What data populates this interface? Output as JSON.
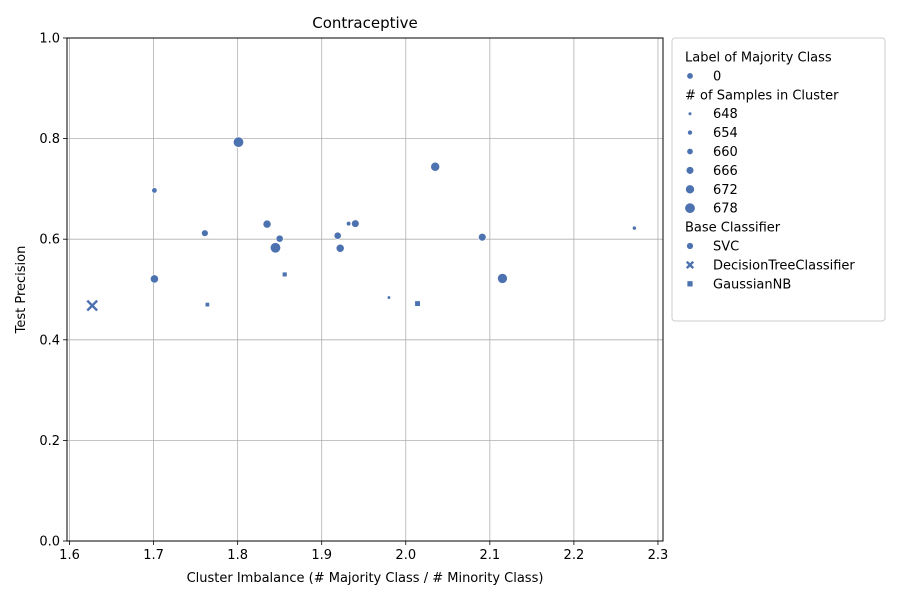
{
  "chart_data": {
    "type": "scatter",
    "title": "Contraceptive",
    "xlabel": "Cluster Imbalance (# Majority Class / # Minority Class)",
    "ylabel": "Test Precision",
    "xlim": [
      1.597,
      2.306
    ],
    "ylim": [
      0.0,
      1.0
    ],
    "xticks": [
      "1.6",
      "1.7",
      "1.8",
      "1.9",
      "2.0",
      "2.1",
      "2.2",
      "2.3"
    ],
    "yticks": [
      "0.0",
      "0.2",
      "0.4",
      "0.6",
      "0.8",
      "1.0"
    ],
    "grid": true,
    "legend_placement": "outside-upper-right",
    "color": "#4c72b0",
    "legend": {
      "hue_title": "Label of Majority Class",
      "hue_items": [
        "0"
      ],
      "size_title": "# of Samples in Cluster",
      "size_items": [
        "648",
        "654",
        "660",
        "666",
        "672",
        "678"
      ],
      "style_title": "Base Classifier",
      "style_items": [
        {
          "label": "SVC",
          "marker": "circle"
        },
        {
          "label": "DecisionTreeClassifier",
          "marker": "x"
        },
        {
          "label": "GaussianNB",
          "marker": "square"
        }
      ]
    },
    "points": [
      {
        "x": 1.801,
        "y": 0.793,
        "samples": 678,
        "classifier": "SVC"
      },
      {
        "x": 1.701,
        "y": 0.697,
        "samples": 656,
        "classifier": "SVC"
      },
      {
        "x": 2.035,
        "y": 0.744,
        "samples": 672,
        "classifier": "SVC"
      },
      {
        "x": 1.761,
        "y": 0.612,
        "samples": 662,
        "classifier": "SVC"
      },
      {
        "x": 1.835,
        "y": 0.63,
        "samples": 668,
        "classifier": "SVC"
      },
      {
        "x": 1.85,
        "y": 0.601,
        "samples": 664,
        "classifier": "SVC"
      },
      {
        "x": 1.845,
        "y": 0.583,
        "samples": 678,
        "classifier": "SVC"
      },
      {
        "x": 1.919,
        "y": 0.607,
        "samples": 664,
        "classifier": "SVC"
      },
      {
        "x": 1.932,
        "y": 0.631,
        "samples": 652,
        "classifier": "SVC"
      },
      {
        "x": 1.94,
        "y": 0.631,
        "samples": 666,
        "classifier": "SVC"
      },
      {
        "x": 1.922,
        "y": 0.582,
        "samples": 668,
        "classifier": "SVC"
      },
      {
        "x": 2.091,
        "y": 0.604,
        "samples": 666,
        "classifier": "SVC"
      },
      {
        "x": 2.272,
        "y": 0.622,
        "samples": 650,
        "classifier": "SVC"
      },
      {
        "x": 1.701,
        "y": 0.521,
        "samples": 668,
        "classifier": "SVC"
      },
      {
        "x": 2.115,
        "y": 0.522,
        "samples": 676,
        "classifier": "SVC"
      },
      {
        "x": 1.627,
        "y": 0.468,
        "samples": 678,
        "classifier": "DecisionTreeClassifier"
      },
      {
        "x": 1.856,
        "y": 0.53,
        "samples": 656,
        "classifier": "GaussianNB"
      },
      {
        "x": 1.764,
        "y": 0.47,
        "samples": 654,
        "classifier": "GaussianNB"
      },
      {
        "x": 1.98,
        "y": 0.484,
        "samples": 648,
        "classifier": "GaussianNB"
      },
      {
        "x": 2.014,
        "y": 0.472,
        "samples": 660,
        "classifier": "GaussianNB"
      }
    ]
  }
}
